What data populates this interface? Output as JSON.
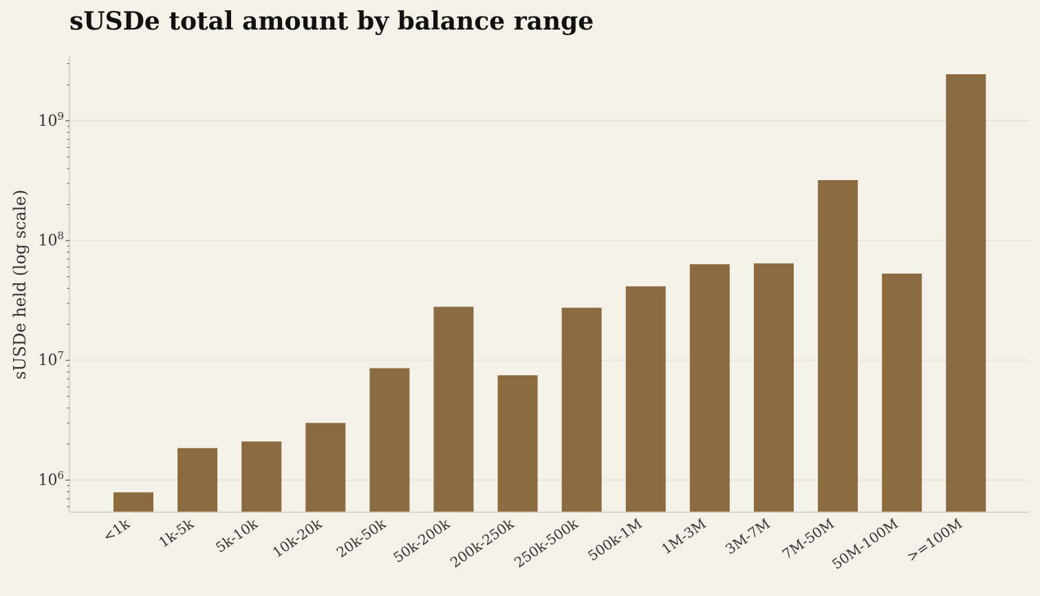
{
  "chart_data": {
    "type": "bar",
    "title": "sUSDe total amount by balance range",
    "xlabel": "",
    "ylabel": "sUSDe held (log scale)",
    "y_scale": "log",
    "ylim": [
      540000,
      3500000000
    ],
    "y_ticks": [
      {
        "base": "10",
        "exp": "6",
        "value": 1000000
      },
      {
        "base": "10",
        "exp": "7",
        "value": 10000000
      },
      {
        "base": "10",
        "exp": "8",
        "value": 100000000
      },
      {
        "base": "10",
        "exp": "9",
        "value": 1000000000
      }
    ],
    "grid": "horizontal",
    "bar_color": "#8b6b3f",
    "categories": [
      "<1k",
      "1k-5k",
      "5k-10k",
      "10k-20k",
      "20k-50k",
      "50k-200k",
      "200k-250k",
      "250k-500k",
      "500k-1M",
      "1M-3M",
      "3M-7M",
      "7M-50M",
      "50M-100M",
      ">=100M"
    ],
    "values": [
      790000,
      1850000,
      2100000,
      3000000,
      8600000,
      28000000,
      7500000,
      27500000,
      41500000,
      63500000,
      64500000,
      320000000,
      53000000,
      2450000000
    ]
  }
}
